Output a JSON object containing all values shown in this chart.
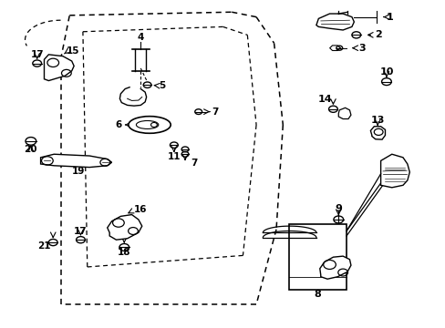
{
  "background_color": "#ffffff",
  "line_color": "#000000",
  "figsize": [
    4.89,
    3.6
  ],
  "dpi": 100,
  "door_outer": {
    "x": [
      0.14,
      0.14,
      0.17,
      0.52,
      0.56,
      0.6,
      0.62,
      0.6,
      0.54,
      0.14
    ],
    "y": [
      0.07,
      0.83,
      0.93,
      0.96,
      0.94,
      0.87,
      0.62,
      0.3,
      0.07,
      0.07
    ]
  },
  "door_inner": {
    "x": [
      0.18,
      0.18,
      0.2,
      0.49,
      0.53,
      0.56,
      0.57,
      0.55,
      0.5,
      0.18
    ],
    "y": [
      0.12,
      0.78,
      0.86,
      0.88,
      0.86,
      0.8,
      0.58,
      0.25,
      0.12,
      0.12
    ]
  }
}
